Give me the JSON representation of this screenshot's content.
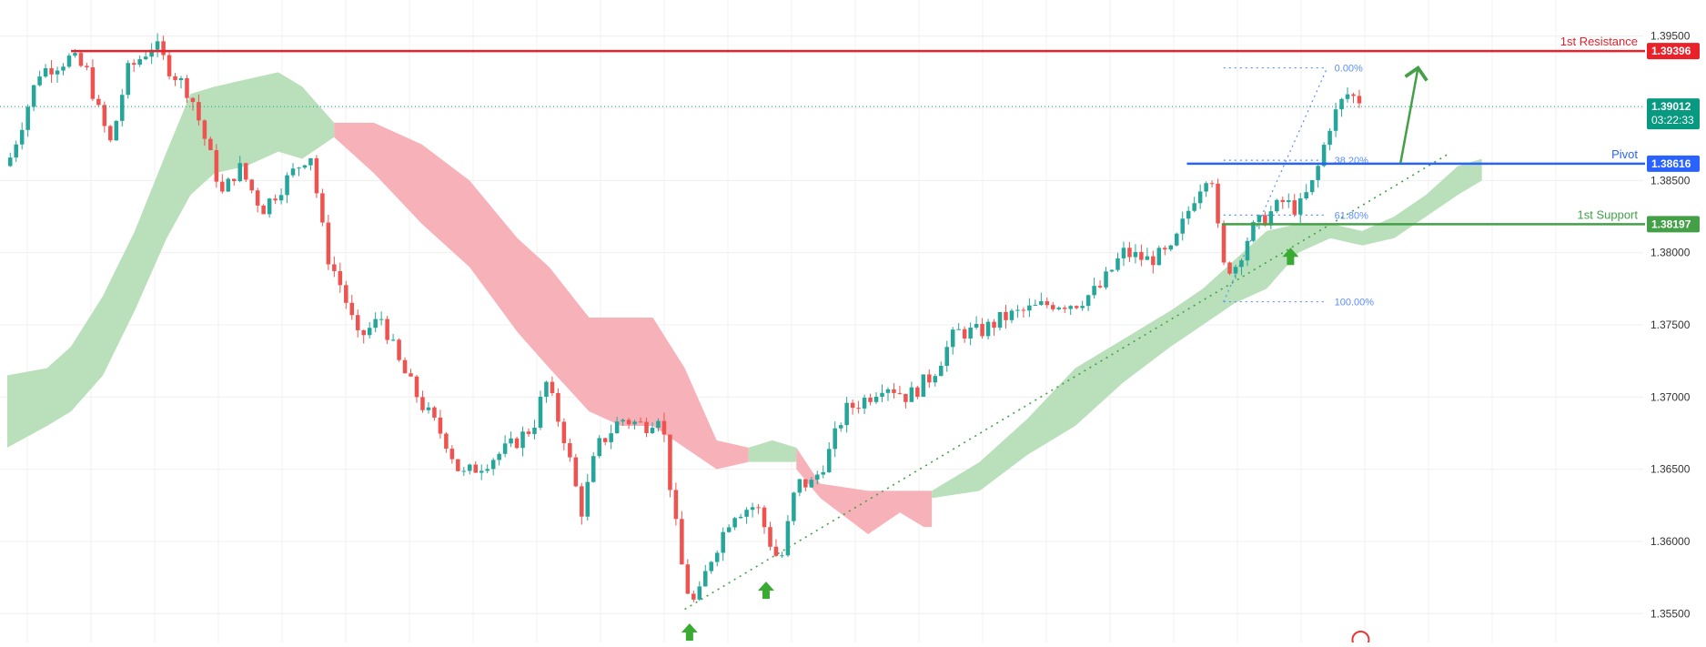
{
  "chart_data": {
    "type": "candlestick",
    "ylim": [
      1.353,
      1.3975
    ],
    "y_ticks": [
      "1.39500",
      "1.38500",
      "1.38000",
      "1.37500",
      "1.37000",
      "1.36500",
      "1.36000",
      "1.35500"
    ],
    "grid": true,
    "price": {
      "current": 1.39012,
      "current_label": "1.39012",
      "countdown": "03:22:33"
    },
    "levels": [
      {
        "name": "1st Resistance",
        "value": 1.39396,
        "value_label": "1.39396",
        "color": "#e8212b"
      },
      {
        "name": "Pivot",
        "value": 1.38616,
        "value_label": "1.38616",
        "color": "#2962ff"
      },
      {
        "name": "1st Support",
        "value": 1.38197,
        "value_label": "1.38197",
        "color": "#43a047"
      }
    ],
    "fibonacci": [
      {
        "label": "0.00%",
        "value": 1.3928
      },
      {
        "label": "38.20%",
        "value": 1.3864
      },
      {
        "label": "61.80%",
        "value": 1.3826
      },
      {
        "label": "100.00%",
        "value": 1.3766
      }
    ],
    "swing_lows": [
      1.3552,
      1.3581,
      1.3811
    ],
    "trendline": [
      {
        "x": 0.0,
        "y": 1.3553
      },
      {
        "x": 1.0,
        "y": 1.3869
      }
    ],
    "cloud_bullish_color": "#b5deb6",
    "cloud_bearish_color": "#f7aeb5",
    "candle_up_color": "#26a69a",
    "candle_down_color": "#ef5350",
    "waypoints": [
      [
        0.0,
        1.386
      ],
      [
        0.02,
        1.3925
      ],
      [
        0.04,
        1.3935
      ],
      [
        0.05,
        1.3925
      ],
      [
        0.058,
        1.3895
      ],
      [
        0.065,
        1.3875
      ],
      [
        0.075,
        1.3925
      ],
      [
        0.092,
        1.3945
      ],
      [
        0.1,
        1.393
      ],
      [
        0.115,
        1.391
      ],
      [
        0.125,
        1.3875
      ],
      [
        0.135,
        1.384
      ],
      [
        0.145,
        1.386
      ],
      [
        0.16,
        1.383
      ],
      [
        0.175,
        1.385
      ],
      [
        0.19,
        1.387
      ],
      [
        0.2,
        1.38
      ],
      [
        0.21,
        1.3775
      ],
      [
        0.22,
        1.374
      ],
      [
        0.235,
        1.3755
      ],
      [
        0.245,
        1.3725
      ],
      [
        0.26,
        1.3695
      ],
      [
        0.275,
        1.367
      ],
      [
        0.285,
        1.3645
      ],
      [
        0.3,
        1.3655
      ],
      [
        0.315,
        1.3665
      ],
      [
        0.33,
        1.368
      ],
      [
        0.338,
        1.371
      ],
      [
        0.35,
        1.367
      ],
      [
        0.36,
        1.362
      ],
      [
        0.37,
        1.3665
      ],
      [
        0.385,
        1.3685
      ],
      [
        0.4,
        1.368
      ],
      [
        0.41,
        1.369
      ],
      [
        0.418,
        1.362
      ],
      [
        0.425,
        1.357
      ],
      [
        0.432,
        1.3555
      ],
      [
        0.44,
        1.3585
      ],
      [
        0.455,
        1.362
      ],
      [
        0.47,
        1.3625
      ],
      [
        0.48,
        1.3595
      ],
      [
        0.485,
        1.3585
      ],
      [
        0.495,
        1.364
      ],
      [
        0.505,
        1.364
      ],
      [
        0.515,
        1.366
      ],
      [
        0.525,
        1.369
      ],
      [
        0.54,
        1.37
      ],
      [
        0.55,
        1.371
      ],
      [
        0.565,
        1.37
      ],
      [
        0.58,
        1.3715
      ],
      [
        0.595,
        1.3745
      ],
      [
        0.61,
        1.3745
      ],
      [
        0.625,
        1.3755
      ],
      [
        0.64,
        1.376
      ],
      [
        0.655,
        1.3765
      ],
      [
        0.67,
        1.3765
      ],
      [
        0.685,
        1.3775
      ],
      [
        0.7,
        1.38
      ],
      [
        0.715,
        1.3795
      ],
      [
        0.73,
        1.38
      ],
      [
        0.745,
        1.384
      ],
      [
        0.755,
        1.386
      ],
      [
        0.762,
        1.379
      ],
      [
        0.77,
        1.379
      ],
      [
        0.78,
        1.3815
      ],
      [
        0.79,
        1.3825
      ],
      [
        0.8,
        1.3835
      ],
      [
        0.81,
        1.383
      ],
      [
        0.82,
        1.385
      ],
      [
        0.83,
        1.389
      ],
      [
        0.84,
        1.391
      ],
      [
        0.85,
        1.3905
      ]
    ],
    "cloud_bands": [
      {
        "sentiment": "bullish",
        "points": [
          [
            0.0,
            1.3715,
            1.3665
          ],
          [
            0.025,
            1.372,
            1.368
          ],
          [
            0.04,
            1.3735,
            1.369
          ],
          [
            0.06,
            1.377,
            1.3715
          ],
          [
            0.08,
            1.3815,
            1.376
          ],
          [
            0.1,
            1.387,
            1.381
          ],
          [
            0.115,
            1.391,
            1.384
          ],
          [
            0.13,
            1.3915,
            1.3855
          ],
          [
            0.15,
            1.392,
            1.386
          ],
          [
            0.17,
            1.3925,
            1.387
          ],
          [
            0.185,
            1.3915,
            1.3865
          ],
          [
            0.205,
            1.389,
            1.388
          ]
        ]
      },
      {
        "sentiment": "bearish",
        "points": [
          [
            0.205,
            1.389,
            1.388
          ],
          [
            0.23,
            1.389,
            1.3855
          ],
          [
            0.26,
            1.3875,
            1.382
          ],
          [
            0.29,
            1.385,
            1.379
          ],
          [
            0.32,
            1.381,
            1.3745
          ],
          [
            0.34,
            1.379,
            1.372
          ],
          [
            0.365,
            1.3755,
            1.369
          ],
          [
            0.385,
            1.3755,
            1.368
          ],
          [
            0.405,
            1.3755,
            1.368
          ],
          [
            0.425,
            1.372,
            1.3665
          ],
          [
            0.445,
            1.367,
            1.365
          ],
          [
            0.465,
            1.3665,
            1.3655
          ]
        ]
      },
      {
        "sentiment": "bullish",
        "points": [
          [
            0.465,
            1.3665,
            1.3655
          ],
          [
            0.48,
            1.367,
            1.3655
          ],
          [
            0.495,
            1.3665,
            1.3655
          ]
        ]
      },
      {
        "sentiment": "bearish",
        "points": [
          [
            0.495,
            1.3665,
            1.365
          ],
          [
            0.51,
            1.364,
            1.363
          ],
          [
            0.54,
            1.3635,
            1.3605
          ],
          [
            0.56,
            1.3635,
            1.362
          ],
          [
            0.575,
            1.3635,
            1.361
          ],
          [
            0.58,
            1.3635,
            1.361
          ]
        ]
      },
      {
        "sentiment": "bullish",
        "points": [
          [
            0.58,
            1.3635,
            1.363
          ],
          [
            0.61,
            1.3655,
            1.3635
          ],
          [
            0.64,
            1.3685,
            1.366
          ],
          [
            0.67,
            1.372,
            1.368
          ],
          [
            0.7,
            1.374,
            1.371
          ],
          [
            0.73,
            1.376,
            1.3735
          ],
          [
            0.75,
            1.3775,
            1.375
          ],
          [
            0.77,
            1.3795,
            1.3765
          ],
          [
            0.79,
            1.3815,
            1.3775
          ],
          [
            0.81,
            1.382,
            1.38
          ],
          [
            0.83,
            1.382,
            1.381
          ],
          [
            0.85,
            1.3815,
            1.3805
          ],
          [
            0.87,
            1.3825,
            1.381
          ],
          [
            0.89,
            1.384,
            1.3825
          ],
          [
            0.91,
            1.386,
            1.384
          ],
          [
            0.925,
            1.3865,
            1.385
          ]
        ]
      }
    ],
    "projection": {
      "from": 1.3862,
      "to": 1.3928
    },
    "icon_names": [
      "arrow-up-icon",
      "curve-arrow-icon",
      "logo-icon"
    ]
  }
}
